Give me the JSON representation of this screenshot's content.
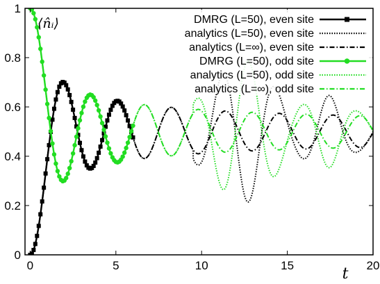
{
  "chart_data": {
    "type": "line",
    "title": "",
    "annotation": "⟨n̂ᵢ⟩",
    "xlabel": "t",
    "ylabel": "",
    "xlim": [
      -0.3,
      20
    ],
    "ylim": [
      0,
      1
    ],
    "xticks": [
      0,
      5,
      10,
      15,
      20
    ],
    "yticks": [
      0,
      0.2,
      0.4,
      0.6,
      0.8,
      1
    ],
    "xtick_labels": [
      "0",
      "5",
      "10",
      "15",
      "20"
    ],
    "ytick_labels": [
      "0",
      "0.2",
      "0.4",
      "0.6",
      "0.8",
      "1"
    ],
    "grid": false,
    "legend_position": "top-right",
    "model": {
      "frequency": 2.0,
      "amplitude": 0.5,
      "finite_size_revival_t": 12.5
    },
    "series": [
      {
        "name": "DMRG (L=50), even site",
        "color": "#000000",
        "style": "solid",
        "marker": "square",
        "parity": "even",
        "kind": "dmrg",
        "t_range": [
          0,
          6
        ]
      },
      {
        "name": "analytics (L=50), even site",
        "color": "#000000",
        "style": "dotted",
        "marker": "none",
        "parity": "even",
        "kind": "finite",
        "t_range": [
          0,
          20
        ]
      },
      {
        "name": "analytics (L=∞), even site",
        "color": "#000000",
        "style": "dashdot",
        "marker": "none",
        "parity": "even",
        "kind": "infinite",
        "t_range": [
          0,
          20
        ]
      },
      {
        "name": "DMRG (L=50), odd site",
        "color": "#22dd22",
        "style": "solid",
        "marker": "circle",
        "parity": "odd",
        "kind": "dmrg",
        "t_range": [
          0,
          6
        ]
      },
      {
        "name": "analytics (L=50), odd site",
        "color": "#22dd22",
        "style": "dotted",
        "marker": "none",
        "parity": "odd",
        "kind": "finite",
        "t_range": [
          0,
          20
        ]
      },
      {
        "name": "analytics (L=∞), odd site",
        "color": "#22dd22",
        "style": "dashdot",
        "marker": "none",
        "parity": "odd",
        "kind": "infinite",
        "t_range": [
          0,
          20
        ]
      }
    ]
  }
}
